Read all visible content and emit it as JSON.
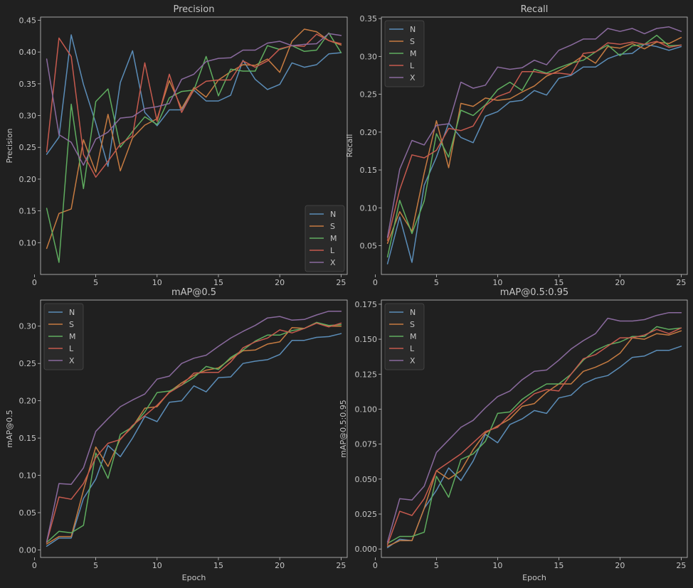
{
  "palette": [
    "#5b8db8",
    "#c67b41",
    "#5fad5f",
    "#c65a4e",
    "#8a6a9e"
  ],
  "legend_names": [
    "N",
    "S",
    "M",
    "L",
    "X"
  ],
  "chart_data": [
    {
      "type": "line",
      "title": "Precision",
      "xlabel": "",
      "ylabel": "Precision",
      "xlim": [
        0.5,
        25.5
      ],
      "ylim": [
        0.05,
        0.455
      ],
      "xticks": [
        0,
        5,
        10,
        15,
        20,
        25
      ],
      "yticks": [
        0.1,
        0.15,
        0.2,
        0.25,
        0.3,
        0.35,
        0.4,
        0.45
      ],
      "ytick_decimals": 2,
      "legend": "lower-right",
      "x": [
        1,
        2,
        3,
        4,
        5,
        6,
        7,
        8,
        9,
        10,
        11,
        12,
        13,
        14,
        15,
        16,
        17,
        18,
        19,
        20,
        21,
        22,
        23,
        24,
        25
      ],
      "series": [
        {
          "name": "N",
          "values": [
            0.239,
            0.266,
            0.427,
            0.349,
            0.288,
            0.22,
            0.352,
            0.402,
            0.305,
            0.284,
            0.309,
            0.309,
            0.34,
            0.323,
            0.323,
            0.332,
            0.387,
            0.357,
            0.341,
            0.349,
            0.383,
            0.376,
            0.38,
            0.397,
            0.399
          ]
        },
        {
          "name": "S",
          "values": [
            0.091,
            0.146,
            0.153,
            0.262,
            0.211,
            0.302,
            0.213,
            0.265,
            0.285,
            0.295,
            0.355,
            0.311,
            0.344,
            0.329,
            0.356,
            0.369,
            0.38,
            0.379,
            0.389,
            0.368,
            0.417,
            0.436,
            0.432,
            0.418,
            0.411
          ]
        },
        {
          "name": "M",
          "values": [
            0.154,
            0.069,
            0.318,
            0.185,
            0.322,
            0.342,
            0.25,
            0.275,
            0.298,
            0.286,
            0.328,
            0.338,
            0.34,
            0.393,
            0.331,
            0.373,
            0.37,
            0.37,
            0.41,
            0.404,
            0.41,
            0.401,
            0.403,
            0.43,
            0.399
          ]
        },
        {
          "name": "L",
          "values": [
            0.243,
            0.422,
            0.393,
            0.239,
            0.203,
            0.228,
            0.255,
            0.268,
            0.383,
            0.291,
            0.365,
            0.305,
            0.341,
            0.354,
            0.356,
            0.356,
            0.386,
            0.376,
            0.386,
            0.405,
            0.41,
            0.409,
            0.428,
            0.418,
            0.413
          ]
        },
        {
          "name": "X",
          "values": [
            0.389,
            0.27,
            0.258,
            0.222,
            0.263,
            0.274,
            0.296,
            0.298,
            0.311,
            0.314,
            0.319,
            0.357,
            0.365,
            0.385,
            0.39,
            0.391,
            0.403,
            0.403,
            0.414,
            0.417,
            0.41,
            0.412,
            0.413,
            0.429,
            0.426
          ]
        }
      ]
    },
    {
      "type": "line",
      "title": "Recall",
      "xlabel": "",
      "ylabel": "Recall",
      "xlim": [
        0.5,
        25.5
      ],
      "ylim": [
        0.012,
        0.352
      ],
      "xticks": [
        0,
        5,
        10,
        15,
        20,
        25
      ],
      "yticks": [
        0.05,
        0.1,
        0.15,
        0.2,
        0.25,
        0.3,
        0.35
      ],
      "ytick_decimals": 2,
      "legend": "top-left",
      "x": [
        1,
        2,
        3,
        4,
        5,
        6,
        7,
        8,
        9,
        10,
        11,
        12,
        13,
        14,
        15,
        16,
        17,
        18,
        19,
        20,
        21,
        22,
        23,
        24,
        25
      ],
      "series": [
        {
          "name": "N",
          "values": [
            0.026,
            0.088,
            0.028,
            0.13,
            0.167,
            0.212,
            0.193,
            0.186,
            0.221,
            0.227,
            0.24,
            0.242,
            0.255,
            0.249,
            0.271,
            0.275,
            0.286,
            0.286,
            0.297,
            0.303,
            0.304,
            0.316,
            0.313,
            0.308,
            0.313
          ]
        },
        {
          "name": "S",
          "values": [
            0.053,
            0.095,
            0.069,
            0.146,
            0.215,
            0.153,
            0.238,
            0.234,
            0.245,
            0.242,
            0.244,
            0.253,
            0.261,
            0.274,
            0.281,
            0.29,
            0.301,
            0.291,
            0.313,
            0.311,
            0.317,
            0.31,
            0.319,
            0.317,
            0.325
          ]
        },
        {
          "name": "M",
          "values": [
            0.035,
            0.11,
            0.066,
            0.109,
            0.198,
            0.167,
            0.229,
            0.222,
            0.236,
            0.256,
            0.266,
            0.255,
            0.283,
            0.278,
            0.285,
            0.291,
            0.295,
            0.306,
            0.315,
            0.301,
            0.314,
            0.316,
            0.328,
            0.314,
            0.315
          ]
        },
        {
          "name": "L",
          "values": [
            0.057,
            0.124,
            0.17,
            0.166,
            0.176,
            0.205,
            0.202,
            0.208,
            0.235,
            0.247,
            0.253,
            0.28,
            0.28,
            0.277,
            0.278,
            0.276,
            0.304,
            0.306,
            0.318,
            0.316,
            0.319,
            0.316,
            0.32,
            0.312,
            0.315
          ]
        },
        {
          "name": "X",
          "values": [
            0.061,
            0.151,
            0.189,
            0.183,
            0.209,
            0.211,
            0.266,
            0.258,
            0.262,
            0.286,
            0.283,
            0.285,
            0.295,
            0.289,
            0.308,
            0.315,
            0.323,
            0.323,
            0.337,
            0.333,
            0.337,
            0.33,
            0.337,
            0.339,
            0.333
          ]
        }
      ]
    },
    {
      "type": "line",
      "title": "mAP@0.5",
      "xlabel": "",
      "ylabel": "mAP@0.5",
      "xlim": [
        0.5,
        25.5
      ],
      "ylim": [
        -0.01,
        0.335
      ],
      "xticks": [
        0,
        5,
        10,
        15,
        20,
        25
      ],
      "yticks": [
        0.0,
        0.05,
        0.1,
        0.15,
        0.2,
        0.25,
        0.3
      ],
      "ytick_decimals": 2,
      "legend": "top-left",
      "x": [
        1,
        2,
        3,
        4,
        5,
        6,
        7,
        8,
        9,
        10,
        11,
        12,
        13,
        14,
        15,
        16,
        17,
        18,
        19,
        20,
        21,
        22,
        23,
        24,
        25
      ],
      "series": [
        {
          "name": "N",
          "values": [
            0.005,
            0.016,
            0.016,
            0.069,
            0.095,
            0.14,
            0.125,
            0.15,
            0.179,
            0.172,
            0.198,
            0.2,
            0.22,
            0.212,
            0.231,
            0.232,
            0.25,
            0.253,
            0.255,
            0.262,
            0.281,
            0.281,
            0.285,
            0.286,
            0.29
          ]
        },
        {
          "name": "S",
          "values": [
            0.008,
            0.018,
            0.018,
            0.08,
            0.138,
            0.112,
            0.149,
            0.165,
            0.19,
            0.192,
            0.212,
            0.224,
            0.234,
            0.241,
            0.244,
            0.256,
            0.267,
            0.268,
            0.276,
            0.279,
            0.298,
            0.297,
            0.305,
            0.3,
            0.3
          ]
        },
        {
          "name": "M",
          "values": [
            0.01,
            0.025,
            0.023,
            0.033,
            0.13,
            0.096,
            0.155,
            0.165,
            0.185,
            0.211,
            0.213,
            0.221,
            0.231,
            0.246,
            0.242,
            0.258,
            0.268,
            0.28,
            0.288,
            0.288,
            0.294,
            0.297,
            0.305,
            0.301,
            0.302
          ]
        },
        {
          "name": "L",
          "values": [
            0.01,
            0.071,
            0.068,
            0.089,
            0.124,
            0.143,
            0.148,
            0.167,
            0.18,
            0.194,
            0.211,
            0.221,
            0.237,
            0.238,
            0.238,
            0.252,
            0.271,
            0.279,
            0.284,
            0.295,
            0.291,
            0.297,
            0.304,
            0.299,
            0.304
          ]
        },
        {
          "name": "X",
          "values": [
            0.011,
            0.089,
            0.088,
            0.11,
            0.159,
            0.176,
            0.192,
            0.201,
            0.209,
            0.229,
            0.233,
            0.25,
            0.257,
            0.261,
            0.273,
            0.284,
            0.293,
            0.301,
            0.311,
            0.313,
            0.308,
            0.309,
            0.315,
            0.32,
            0.32
          ]
        }
      ]
    },
    {
      "type": "line",
      "title": "mAP@0.5:0.95",
      "xlabel": "",
      "ylabel": "mAP@0.5:0.95",
      "xlim": [
        0.5,
        25.5
      ],
      "ylim": [
        -0.006,
        0.178
      ],
      "xticks": [
        0,
        5,
        10,
        15,
        20,
        25
      ],
      "yticks": [
        0.0,
        0.025,
        0.05,
        0.075,
        0.1,
        0.125,
        0.15,
        0.175
      ],
      "ytick_decimals": 3,
      "legend": "top-left",
      "x": [
        1,
        2,
        3,
        4,
        5,
        6,
        7,
        8,
        9,
        10,
        11,
        12,
        13,
        14,
        15,
        16,
        17,
        18,
        19,
        20,
        21,
        22,
        23,
        24,
        25
      ],
      "series": [
        {
          "name": "N",
          "values": [
            0.001,
            0.007,
            0.006,
            0.029,
            0.042,
            0.058,
            0.049,
            0.063,
            0.082,
            0.076,
            0.089,
            0.093,
            0.099,
            0.097,
            0.108,
            0.11,
            0.118,
            0.122,
            0.124,
            0.13,
            0.137,
            0.138,
            0.142,
            0.142,
            0.145
          ]
        },
        {
          "name": "S",
          "values": [
            0.002,
            0.006,
            0.006,
            0.029,
            0.056,
            0.05,
            0.056,
            0.071,
            0.083,
            0.088,
            0.093,
            0.102,
            0.104,
            0.112,
            0.118,
            0.118,
            0.127,
            0.13,
            0.134,
            0.14,
            0.151,
            0.15,
            0.154,
            0.153,
            0.156
          ]
        },
        {
          "name": "M",
          "values": [
            0.004,
            0.009,
            0.009,
            0.012,
            0.052,
            0.037,
            0.064,
            0.068,
            0.077,
            0.097,
            0.098,
            0.107,
            0.113,
            0.118,
            0.118,
            0.125,
            0.135,
            0.142,
            0.146,
            0.148,
            0.152,
            0.152,
            0.159,
            0.157,
            0.158
          ]
        },
        {
          "name": "L",
          "values": [
            0.003,
            0.027,
            0.024,
            0.036,
            0.056,
            0.062,
            0.068,
            0.076,
            0.084,
            0.087,
            0.096,
            0.104,
            0.111,
            0.114,
            0.113,
            0.125,
            0.136,
            0.139,
            0.145,
            0.151,
            0.151,
            0.153,
            0.157,
            0.154,
            0.158
          ]
        },
        {
          "name": "X",
          "values": [
            0.005,
            0.036,
            0.035,
            0.045,
            0.069,
            0.078,
            0.087,
            0.092,
            0.101,
            0.109,
            0.113,
            0.121,
            0.127,
            0.128,
            0.135,
            0.143,
            0.149,
            0.154,
            0.165,
            0.163,
            0.163,
            0.164,
            0.167,
            0.169,
            0.169
          ]
        }
      ]
    }
  ],
  "xaxis_bottom_label": "Epoch"
}
